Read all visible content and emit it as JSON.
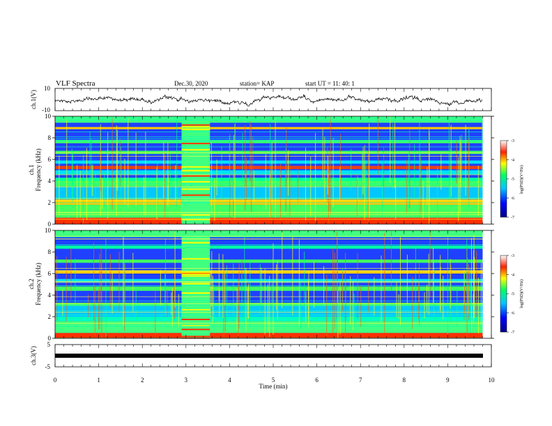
{
  "header": {
    "title": "VLF Spectra",
    "date": "Dec.30, 2020",
    "station": "station= KAP",
    "start": "start UT =  11: 40: 1"
  },
  "xaxis": {
    "label": "Time (min)",
    "ticks": [
      "0",
      "1",
      "2",
      "3",
      "4",
      "5",
      "6",
      "7",
      "8",
      "9",
      "10"
    ],
    "range": [
      0,
      10
    ]
  },
  "panels": {
    "ch1_waveform": {
      "ylabel": "ch.1(V)",
      "ticks": [
        "10",
        "-10"
      ],
      "range": [
        -10,
        10
      ]
    },
    "ch1_spectrogram": {
      "ylabel": "ch.1\nFrequency (kHz)",
      "ylabel_line1": "ch.1",
      "ylabel_line2": "Frequency (kHz)",
      "ticks": [
        "0",
        "2",
        "4",
        "6",
        "8",
        "10"
      ],
      "range": [
        0,
        10
      ]
    },
    "ch2_spectrogram": {
      "ylabel_line1": "ch.2",
      "ylabel_line2": "Frequency (kHz)",
      "ticks": [
        "0",
        "2",
        "4",
        "6",
        "8",
        "10"
      ],
      "range": [
        0,
        10
      ]
    },
    "ch3_waveform": {
      "ylabel": "ch.3(V)",
      "ticks": [
        "5",
        "-5"
      ],
      "range": [
        -5,
        5
      ]
    }
  },
  "colorbar": {
    "label": "log(PSD)(V²/Hz)",
    "ticks": [
      "-3",
      "-4",
      "-5",
      "-6",
      "-7"
    ],
    "range": [
      -7,
      -3
    ],
    "colors": [
      "#00008b",
      "#0000ff",
      "#00bfff",
      "#00ff80",
      "#ffff00",
      "#ff0000",
      "#ffffff"
    ]
  },
  "chart_data": {
    "type": "heatmap",
    "title": "VLF Spectra",
    "xlabel": "Time (min)",
    "xlim": [
      0,
      10
    ],
    "data_end_min": 9.8,
    "series": [
      {
        "name": "ch.1(V)",
        "kind": "waveform",
        "ylim": [
          -10,
          10
        ],
        "approx_range": [
          -3,
          3
        ]
      },
      {
        "name": "ch.1",
        "kind": "spectrogram",
        "ylabel": "Frequency (kHz)",
        "ylim": [
          0,
          10
        ],
        "enhanced_interval_min": [
          2.9,
          3.55
        ]
      },
      {
        "name": "ch.2",
        "kind": "spectrogram",
        "ylabel": "Frequency (kHz)",
        "ylim": [
          0,
          10
        ],
        "enhanced_interval_min": [
          2.9,
          3.55
        ]
      },
      {
        "name": "ch.3(V)",
        "kind": "waveform",
        "ylim": [
          -5,
          5
        ],
        "approx_value": -1
      }
    ],
    "colorbar": {
      "label": "log(PSD)(V²/Hz)",
      "range": [
        -7,
        -3
      ]
    }
  }
}
